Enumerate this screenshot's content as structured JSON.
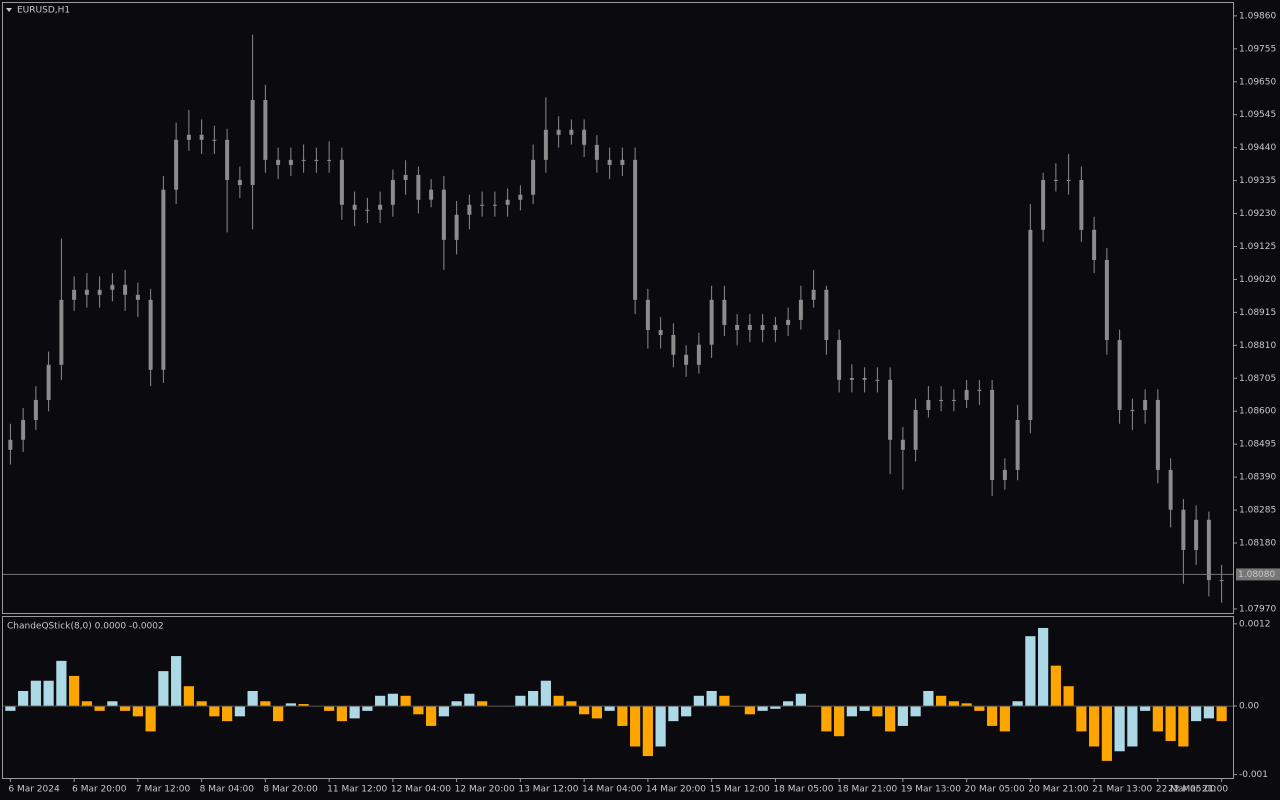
{
  "chart_data": [
    {
      "type": "candlestick",
      "title": "EURUSD,H1",
      "color": "#8c8c8c",
      "ylim": [
        1.07957,
        1.09901
      ],
      "yticks": [
        {
          "value": 1.0986,
          "label": "1.09860"
        },
        1.09755,
        {
          "value": 1.0965,
          "label": "1.09650"
        },
        1.09545,
        {
          "value": 1.0944,
          "label": "1.09440"
        },
        1.09335,
        {
          "value": 1.0923,
          "label": "1.09230"
        },
        1.09125,
        {
          "value": 1.0902,
          "label": "1.09020"
        },
        1.08915,
        {
          "value": 1.0881,
          "label": "1.08810"
        },
        1.08705,
        {
          "value": 1.086,
          "label": "1.08600"
        },
        1.08495,
        {
          "value": 1.0839,
          "label": "1.08390"
        },
        1.08285,
        {
          "value": 1.0818,
          "label": "1.08180"
        },
        {
          "value": 1.0797,
          "label": "1.07970"
        }
      ],
      "last_price": {
        "value": 1.0808,
        "label": "1.08080"
      },
      "open": [
        1.08477,
        1.08509,
        1.08572,
        1.08636,
        1.08748,
        1.08955,
        1.08987,
        1.08971,
        1.08987,
        1.09003,
        1.08971,
        1.08955,
        1.08732,
        1.09306,
        1.09465,
        1.09481,
        1.09465,
        1.09465,
        1.09337,
        1.09321,
        1.09592,
        1.09401,
        1.09385,
        1.09401,
        1.09401,
        1.09401,
        1.09401,
        1.09258,
        1.09242,
        1.09242,
        1.09258,
        1.09337,
        1.09353,
        1.09274,
        1.09306,
        1.09146,
        1.09226,
        1.09258,
        1.09258,
        1.09258,
        1.09274,
        1.0929,
        1.09401,
        1.09497,
        1.09481,
        1.09497,
        1.09449,
        1.09401,
        1.09385,
        1.09401,
        1.08955,
        1.08859,
        1.08843,
        1.0878,
        1.08748,
        1.08812,
        1.08955,
        1.08875,
        1.08859,
        1.08875,
        1.08859,
        1.08875,
        1.08891,
        1.08955,
        1.08987,
        1.08827,
        1.087,
        1.08706,
        1.087,
        1.087,
        1.08509,
        1.08477,
        1.08604,
        1.08636,
        1.08636,
        1.08636,
        1.08668,
        1.08668,
        1.08381,
        1.08413,
        1.08572,
        1.09178,
        1.09337,
        1.09337,
        1.09337,
        1.09178,
        1.09082,
        1.08827,
        1.08604,
        1.08604,
        1.08636,
        1.08413,
        1.08286,
        1.08158,
        1.08254,
        1.08062
      ],
      "high": [
        1.0856,
        1.0861,
        1.0868,
        1.0879,
        1.0915,
        1.0903,
        1.0904,
        1.0903,
        1.0904,
        1.0905,
        1.0901,
        1.0899,
        1.0935,
        1.0952,
        1.0956,
        1.0953,
        1.0951,
        1.095,
        1.0938,
        1.098,
        1.0964,
        1.0944,
        1.0944,
        1.0945,
        1.0944,
        1.0946,
        1.0944,
        1.093,
        1.0928,
        1.093,
        1.0937,
        1.094,
        1.0938,
        1.0934,
        1.0935,
        1.0927,
        1.0929,
        1.093,
        1.093,
        1.0931,
        1.0932,
        1.0945,
        1.096,
        1.0954,
        1.0953,
        1.0953,
        1.0948,
        1.0944,
        1.0944,
        1.0944,
        1.0899,
        1.089,
        1.0888,
        1.0881,
        1.0885,
        1.09,
        1.09,
        1.0891,
        1.0891,
        1.0891,
        1.089,
        1.0893,
        1.09,
        1.0905,
        1.09,
        1.0886,
        1.0875,
        1.0874,
        1.0874,
        1.0874,
        1.0855,
        1.0864,
        1.0868,
        1.0868,
        1.0867,
        1.087,
        1.087,
        1.087,
        1.0845,
        1.0862,
        1.0926,
        1.0936,
        1.0939,
        1.0942,
        1.0938,
        1.0922,
        1.0912,
        1.0886,
        1.0864,
        1.0867,
        1.0867,
        1.0845,
        1.0832,
        1.083,
        1.0828,
        1.0811
      ],
      "low": [
        1.0843,
        1.0847,
        1.0854,
        1.086,
        1.087,
        1.0892,
        1.0893,
        1.0893,
        1.0895,
        1.0892,
        1.089,
        1.0868,
        1.0869,
        1.0926,
        1.0943,
        1.0942,
        1.0942,
        1.0917,
        1.0928,
        1.0918,
        1.0936,
        1.0934,
        1.0935,
        1.0936,
        1.0936,
        1.0936,
        1.0921,
        1.0919,
        1.092,
        1.092,
        1.0922,
        1.0929,
        1.0923,
        1.0925,
        1.0905,
        1.091,
        1.0918,
        1.0922,
        1.0922,
        1.0922,
        1.0924,
        1.0926,
        1.0936,
        1.0944,
        1.0945,
        1.0941,
        1.0936,
        1.0934,
        1.0935,
        1.0891,
        1.088,
        1.088,
        1.0874,
        1.0871,
        1.0872,
        1.0877,
        1.0884,
        1.0881,
        1.0882,
        1.0882,
        1.0882,
        1.0884,
        1.0886,
        1.0893,
        1.0878,
        1.0866,
        1.0866,
        1.0866,
        1.0866,
        1.084,
        1.0835,
        1.0844,
        1.0858,
        1.086,
        1.086,
        1.0861,
        1.0862,
        1.0833,
        1.0835,
        1.0838,
        1.0853,
        1.0914,
        1.093,
        1.0929,
        1.0914,
        1.0904,
        1.0878,
        1.0856,
        1.0854,
        1.0856,
        1.0837,
        1.0823,
        1.0805,
        1.0811,
        1.0801,
        1.0799
      ],
      "close": [
        1.08509,
        1.08572,
        1.08636,
        1.08748,
        1.08955,
        1.08987,
        1.08971,
        1.08987,
        1.09003,
        1.08971,
        1.08955,
        1.08732,
        1.09306,
        1.09465,
        1.09481,
        1.09465,
        1.09465,
        1.09337,
        1.09321,
        1.09592,
        1.09401,
        1.09385,
        1.09401,
        1.09401,
        1.09401,
        1.09401,
        1.09258,
        1.09242,
        1.09242,
        1.09258,
        1.09337,
        1.09353,
        1.09274,
        1.09306,
        1.09146,
        1.09226,
        1.09258,
        1.09258,
        1.09258,
        1.09274,
        1.0929,
        1.09401,
        1.09497,
        1.09481,
        1.09497,
        1.09449,
        1.09401,
        1.09385,
        1.09401,
        1.08955,
        1.08859,
        1.08843,
        1.0878,
        1.08748,
        1.08812,
        1.08955,
        1.08875,
        1.08859,
        1.08875,
        1.08859,
        1.08875,
        1.08891,
        1.08955,
        1.08987,
        1.08827,
        1.087,
        1.08706,
        1.087,
        1.087,
        1.08509,
        1.08477,
        1.08604,
        1.08636,
        1.08636,
        1.08636,
        1.08668,
        1.08668,
        1.08381,
        1.08413,
        1.08572,
        1.09178,
        1.09337,
        1.09337,
        1.09337,
        1.09178,
        1.09082,
        1.08827,
        1.08604,
        1.08604,
        1.08636,
        1.08413,
        1.08286,
        1.08158,
        1.08254,
        1.08062,
        1.08062
      ]
    },
    {
      "type": "histogram-bar",
      "title": "ChandeQStick(8,0) 0.0000 -0.0002",
      "up_color": "#add8e6",
      "down_color": "#ffa500",
      "ylim": [
        -0.00105,
        0.0013
      ],
      "yticks": [
        0.0012,
        {
          "value": 0,
          "label": "0.00"
        },
        -0.001
      ],
      "categories": [
        "6 Mar 2024",
        null,
        null,
        null,
        null,
        "6 Mar 20:00",
        null,
        null,
        null,
        null,
        "7 Mar 12:00",
        null,
        null,
        null,
        null,
        "8 Mar 04:00",
        null,
        null,
        null,
        null,
        "8 Mar 20:00",
        null,
        null,
        null,
        null,
        "11 Mar 12:00",
        null,
        null,
        null,
        null,
        "12 Mar 04:00",
        null,
        null,
        null,
        null,
        "12 Mar 20:00",
        null,
        null,
        null,
        null,
        "13 Mar 12:00",
        null,
        null,
        null,
        null,
        "14 Mar 04:00",
        null,
        null,
        null,
        null,
        "14 Mar 20:00",
        null,
        null,
        null,
        null,
        "15 Mar 12:00",
        null,
        null,
        null,
        null,
        "18 Mar 05:00",
        null,
        null,
        null,
        null,
        "18 Mar 21:00",
        null,
        null,
        null,
        null,
        "19 Mar 13:00",
        null,
        null,
        null,
        null,
        "20 Mar 05:00",
        null,
        null,
        null,
        null,
        "20 Mar 21:00",
        null,
        null,
        null,
        null,
        "21 Mar 13:00",
        null,
        null,
        null,
        null,
        "22 Mar 05:00",
        null,
        null,
        null,
        null,
        "22 Mar 21:00"
      ],
      "values": [
        -7e-05,
        0.00022,
        0.00037,
        0.00037,
        0.00066,
        0.00044,
        7e-05,
        -7e-05,
        7e-05,
        -7e-05,
        -0.00015,
        -0.00037,
        0.00051,
        0.00073,
        0.00029,
        7e-05,
        -0.00015,
        -0.00022,
        -0.00015,
        0.00022,
        7e-05,
        -0.00022,
        4e-05,
        3e-05,
        0,
        -7e-05,
        -0.00022,
        -0.00018,
        -7e-05,
        0.00015,
        0.00018,
        0.00015,
        -0.00012,
        -0.00029,
        -0.00015,
        7e-05,
        0.00018,
        7e-05,
        0,
        0,
        0.00015,
        0.00022,
        0.00037,
        0.00015,
        7e-05,
        -0.00012,
        -0.00018,
        -7e-05,
        -0.00029,
        -0.00059,
        -0.00073,
        -0.00059,
        -0.00022,
        -0.00015,
        0.00015,
        0.00022,
        0.00015,
        0,
        -0.00012,
        -7e-05,
        -4e-05,
        7e-05,
        0.00018,
        0,
        -0.00037,
        -0.00044,
        -0.00015,
        -7e-05,
        -0.00015,
        -0.00037,
        -0.00029,
        -0.00015,
        0.00022,
        0.00015,
        7e-05,
        4e-05,
        -7e-05,
        -0.00029,
        -0.00037,
        7e-05,
        0.00102,
        0.00114,
        0.00059,
        0.00029,
        -0.00037,
        -0.00059,
        -0.0008,
        -0.00066,
        -0.00059,
        -7e-05,
        -0.00037,
        -0.00051,
        -0.00059,
        -0.00022,
        -0.00018,
        -0.00022
      ]
    }
  ]
}
